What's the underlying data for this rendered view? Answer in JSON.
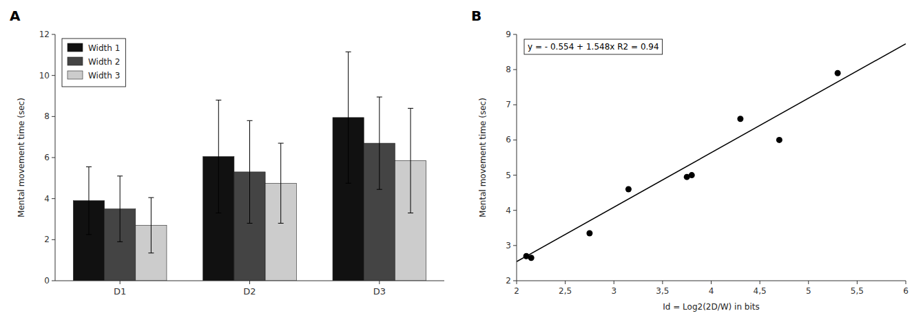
{
  "chart_data": [
    {
      "type": "bar",
      "title": "A",
      "categories": [
        "D1",
        "D2",
        "D3"
      ],
      "series": [
        {
          "name": "Width 1",
          "color": "#111111",
          "values": [
            3.9,
            6.05,
            7.95
          ],
          "errors": [
            1.65,
            2.75,
            3.2
          ]
        },
        {
          "name": "Width 2",
          "color": "#444444",
          "values": [
            3.5,
            5.3,
            6.7
          ],
          "errors": [
            1.6,
            2.5,
            2.25
          ]
        },
        {
          "name": "Width 3",
          "color": "#cccccc",
          "values": [
            2.7,
            4.75,
            5.85
          ],
          "errors": [
            1.35,
            1.95,
            2.55
          ]
        }
      ],
      "y_label": "Mental movement time (sec)",
      "ylim": [
        0,
        12
      ],
      "yticks": [
        0,
        2,
        4,
        6,
        8,
        10,
        12
      ],
      "legend": "upper left",
      "grid": false
    },
    {
      "type": "scatter",
      "title": "B",
      "series": [
        {
          "type": "scatter",
          "color": "#000000",
          "x": [
            2.1,
            2.15,
            2.75,
            3.15,
            3.75,
            3.8,
            4.3,
            4.7,
            5.3
          ],
          "values": [
            2.7,
            2.65,
            3.35,
            4.6,
            4.95,
            5.0,
            6.6,
            6.0,
            7.9
          ]
        },
        {
          "type": "line",
          "color": "#000000",
          "x": [
            2.0,
            6.0
          ],
          "values": [
            2.542,
            8.734
          ]
        }
      ],
      "annotations": [
        "y = - 0.554 + 1.548x  R2 = 0.94"
      ],
      "x_label": "Id = Log2(2D/W) in bits",
      "y_label": "Mental movement time (sec)",
      "xlim": [
        2.0,
        6.0
      ],
      "xticks": [
        2,
        {
          "value": 2.5,
          "label": "2,5"
        },
        3,
        {
          "value": 3.5,
          "label": "3,5"
        },
        4,
        {
          "value": 4.5,
          "label": "4,5"
        },
        5,
        {
          "value": 5.5,
          "label": "5,5"
        },
        6
      ],
      "ylim": [
        2.0,
        9.0
      ],
      "yticks": [
        2,
        3,
        4,
        5,
        6,
        7,
        8,
        9
      ],
      "grid": false
    }
  ]
}
